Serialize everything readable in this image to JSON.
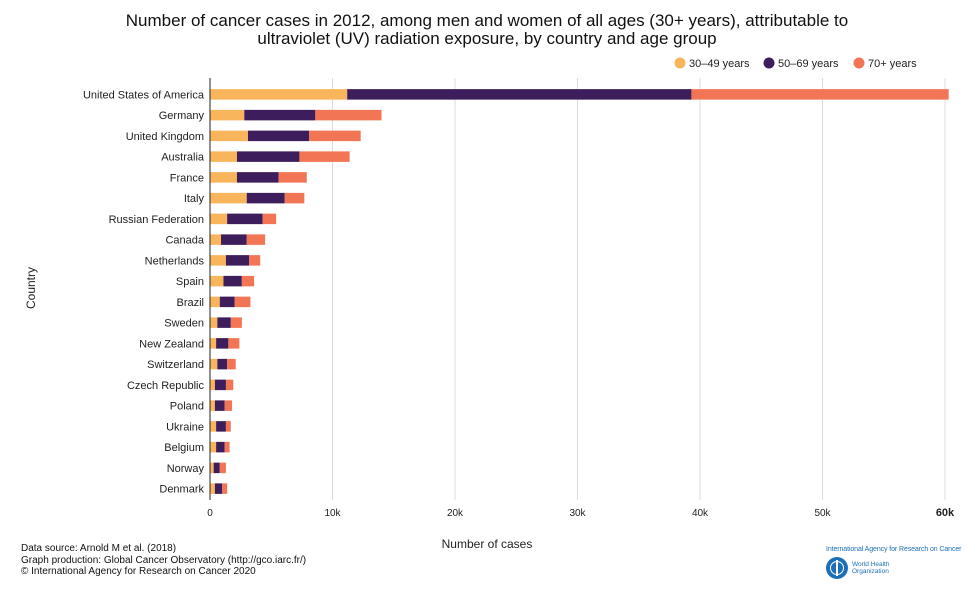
{
  "chart_data": {
    "type": "bar",
    "orientation": "horizontal",
    "stacked": true,
    "title_lines": [
      "Number of cancer cases in 2012, among men and women of all ages (30+ years), attributable to",
      "ultraviolet (UV) radiation exposure, by country and age group"
    ],
    "xlabel": "Number of cases",
    "ylabel": "Country",
    "xlim": [
      0,
      60000
    ],
    "xticks": [
      0,
      10000,
      20000,
      30000,
      40000,
      50000,
      60000
    ],
    "xtick_labels": [
      "0",
      "10k",
      "20k",
      "30k",
      "40k",
      "50k",
      "60k"
    ],
    "grid": "vertical",
    "legend_position": "top-right",
    "categories": [
      "United States of America",
      "Germany",
      "United Kingdom",
      "Australia",
      "France",
      "Italy",
      "Russian Federation",
      "Canada",
      "Netherlands",
      "Spain",
      "Brazil",
      "Sweden",
      "New Zealand",
      "Switzerland",
      "Czech Republic",
      "Poland",
      "Ukraine",
      "Belgium",
      "Norway",
      "Denmark"
    ],
    "series": [
      {
        "name": "30–49 years",
        "color": "#f9b55b",
        "values": [
          11200,
          2800,
          3100,
          2200,
          2200,
          3000,
          1400,
          900,
          1300,
          1100,
          800,
          600,
          500,
          600,
          400,
          400,
          500,
          500,
          300,
          400
        ]
      },
      {
        "name": "50–69 years",
        "color": "#3d1d5c",
        "values": [
          28100,
          5800,
          5000,
          5100,
          3400,
          3100,
          2900,
          2100,
          1900,
          1500,
          1200,
          1100,
          1000,
          800,
          900,
          800,
          800,
          700,
          500,
          600
        ]
      },
      {
        "name": "70+ years",
        "color": "#f27656",
        "values": [
          21000,
          5400,
          4200,
          4100,
          2300,
          1600,
          1100,
          1500,
          900,
          1000,
          1300,
          900,
          900,
          700,
          600,
          600,
          400,
          400,
          500,
          400
        ]
      }
    ]
  },
  "footer": {
    "line1": "Data source: Arnold M et al. (2018)",
    "line2": "Graph production: Global Cancer Observatory (http://gco.iarc.fr/)",
    "line3": "© International Agency for Research on Cancer 2020"
  },
  "logo": {
    "iarc": "International Agency for Research on Cancer",
    "who_line1": "World Health",
    "who_line2": "Organization"
  }
}
